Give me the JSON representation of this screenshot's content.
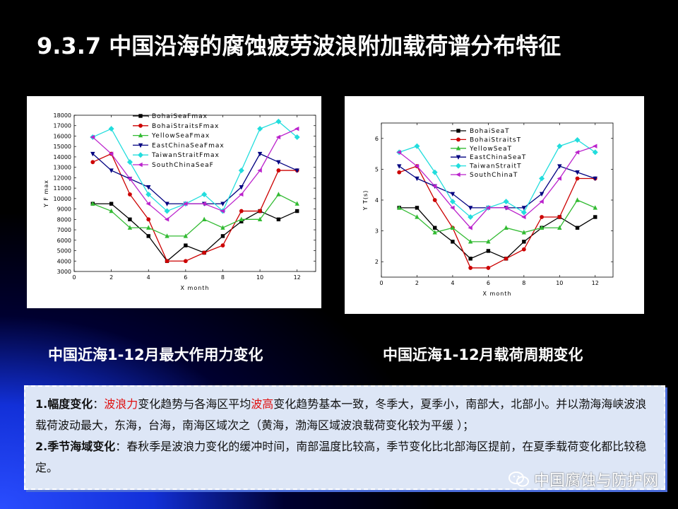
{
  "slide": {
    "title": "9.3.7 中国沿海的腐蚀疲劳波浪附加载荷谱分布特征"
  },
  "captions": {
    "left": "中国近海1-12月最大作用力变化",
    "right": "中国近海1-12月载荷周期变化"
  },
  "notes": {
    "p1_label": "1.幅度变化",
    "p1_colon": "：",
    "p1_red1": "波浪力",
    "p1_text1": "变化趋势与各海区平均",
    "p1_red2": "波高",
    "p1_text2": "变化趋势基本一致，冬季大，夏季小，南部大，北部小。并以渤海海峡波浪载荷波动最大，东海，台海，南海区域次之（黄海，渤海区域波浪载荷变化较为平缓 ）；",
    "p2_label": "2.季节海域变化",
    "p2_text": "：春秋季是波浪力变化的缓冲时间，南部温度比较高，季节变化比北部海区提前，在夏季载荷变化都比较稳定。"
  },
  "watermark": {
    "text": "中国腐蚀与防护网",
    "icon": "wechat-icon"
  },
  "chart_data": [
    {
      "type": "line",
      "xlabel": "X month",
      "ylabel": "Y F max",
      "xlim": [
        0,
        13
      ],
      "ylim": [
        3000,
        18000
      ],
      "xticks": [
        0,
        2,
        4,
        6,
        8,
        10,
        12
      ],
      "yticks": [
        3000,
        4000,
        5000,
        6000,
        7000,
        8000,
        9000,
        10000,
        11000,
        12000,
        13000,
        14000,
        15000,
        16000,
        17000,
        18000
      ],
      "legend_position": "top-left",
      "x": [
        1,
        2,
        3,
        4,
        5,
        6,
        7,
        8,
        9,
        10,
        11,
        12
      ],
      "series": [
        {
          "name": "BohaiSeaFmax",
          "color": "#000000",
          "marker": "square",
          "values": [
            9500,
            9500,
            8000,
            6400,
            4000,
            5500,
            4800,
            6400,
            7800,
            8800,
            8000,
            8800
          ]
        },
        {
          "name": "BohaiStraitsFmax",
          "color": "#cc0000",
          "marker": "circle",
          "values": [
            13500,
            14300,
            10400,
            8000,
            4000,
            4000,
            4800,
            5500,
            8800,
            8800,
            12700,
            12700
          ]
        },
        {
          "name": "YellowSeaFmax",
          "color": "#33bb33",
          "marker": "triangle-up",
          "values": [
            9500,
            8800,
            7200,
            7200,
            6400,
            6400,
            8000,
            7200,
            8000,
            8000,
            10400,
            9500
          ]
        },
        {
          "name": "EastChinaSeaFmax",
          "color": "#000080",
          "marker": "triangle-down",
          "values": [
            14300,
            12700,
            11900,
            11100,
            9500,
            9500,
            9500,
            9500,
            11100,
            14300,
            13500,
            12700
          ]
        },
        {
          "name": "TaiwanStraitFmax",
          "color": "#22dddd",
          "marker": "diamond",
          "values": [
            15900,
            16700,
            13500,
            10400,
            8800,
            9500,
            10400,
            8800,
            12700,
            16700,
            17400,
            15900
          ]
        },
        {
          "name": "SouthChinaSeaF",
          "color": "#bb22cc",
          "marker": "triangle-left",
          "values": [
            15900,
            14300,
            11900,
            9500,
            8000,
            9500,
            9500,
            8800,
            10400,
            12700,
            15900,
            16700
          ]
        }
      ]
    },
    {
      "type": "line",
      "xlabel": "X month",
      "ylabel": "Y T(s)",
      "xlim": [
        0,
        13
      ],
      "ylim": [
        1.5,
        6.5
      ],
      "xticks": [
        0,
        2,
        4,
        6,
        8,
        10,
        12
      ],
      "yticks": [
        2,
        3,
        4,
        5,
        6
      ],
      "legend_position": "top-left",
      "x": [
        1,
        2,
        3,
        4,
        5,
        6,
        7,
        8,
        9,
        10,
        11,
        12
      ],
      "series": [
        {
          "name": "BohaiSeaT",
          "color": "#000000",
          "marker": "square",
          "values": [
            3.75,
            3.75,
            3.1,
            2.65,
            2.1,
            2.35,
            2.1,
            2.65,
            3.1,
            3.45,
            3.1,
            3.45
          ]
        },
        {
          "name": "BohaiStraitsT",
          "color": "#cc0000",
          "marker": "circle",
          "values": [
            4.9,
            5.1,
            4.0,
            3.1,
            1.8,
            1.8,
            2.1,
            2.4,
            3.45,
            3.45,
            4.7,
            4.7
          ]
        },
        {
          "name": "YellowSeaT",
          "color": "#33bb33",
          "marker": "triangle-up",
          "values": [
            3.75,
            3.45,
            2.95,
            3.1,
            2.65,
            2.65,
            3.1,
            2.95,
            3.1,
            3.1,
            4.0,
            3.75
          ]
        },
        {
          "name": "EastChinaSeaT",
          "color": "#000080",
          "marker": "triangle-down",
          "values": [
            5.1,
            4.7,
            4.45,
            4.2,
            3.75,
            3.75,
            3.75,
            3.75,
            4.2,
            5.1,
            4.9,
            4.7
          ]
        },
        {
          "name": "TaiwanStraitT",
          "color": "#22dddd",
          "marker": "diamond",
          "values": [
            5.55,
            5.75,
            4.9,
            3.95,
            3.45,
            3.75,
            3.95,
            3.6,
            4.7,
            5.75,
            5.95,
            5.55
          ]
        },
        {
          "name": "SouthChinaT",
          "color": "#bb22cc",
          "marker": "triangle-left",
          "values": [
            5.55,
            5.1,
            4.45,
            3.75,
            3.1,
            3.75,
            3.75,
            3.45,
            3.95,
            4.7,
            5.55,
            5.75
          ]
        }
      ]
    }
  ]
}
